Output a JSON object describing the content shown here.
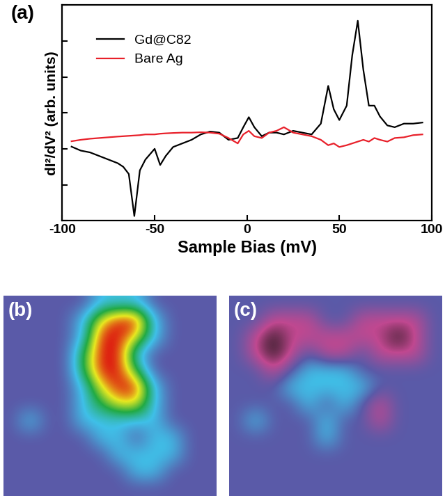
{
  "chart_data": [
    {
      "type": "line",
      "panel_label": "(a)",
      "x_label": "Sample Bias (mV)",
      "y_label": "dI²/dV² (arb. units)",
      "x": [
        -95,
        -90,
        -85,
        -80,
        -75,
        -70,
        -67,
        -64,
        -61,
        -58,
        -55,
        -50,
        -47,
        -44,
        -40,
        -35,
        -30,
        -25,
        -20,
        -15,
        -10,
        -5,
        -2,
        1,
        4,
        8,
        12,
        16,
        20,
        25,
        30,
        35,
        40,
        44,
        47,
        50,
        54,
        57,
        60,
        63,
        66,
        69,
        72,
        76,
        80,
        85,
        90,
        95
      ],
      "series": [
        {
          "name": "Gd@C82",
          "color": "#000000",
          "values": [
            -0.94,
            -1.05,
            -1.1,
            -1.2,
            -1.3,
            -1.4,
            -1.5,
            -1.7,
            -2.87,
            -1.6,
            -1.3,
            -1.0,
            -1.45,
            -1.2,
            -0.95,
            -0.85,
            -0.75,
            -0.6,
            -0.52,
            -0.55,
            -0.75,
            -0.7,
            -0.4,
            -0.12,
            -0.4,
            -0.65,
            -0.55,
            -0.55,
            -0.6,
            -0.5,
            -0.55,
            -0.6,
            -0.3,
            0.75,
            0.1,
            -0.2,
            0.2,
            1.6,
            2.56,
            1.2,
            0.2,
            0.2,
            -0.1,
            -0.35,
            -0.4,
            -0.3,
            -0.3,
            -0.27
          ]
        },
        {
          "name": "Bare Ag",
          "color": "#e8202a",
          "values": [
            -0.79,
            -0.75,
            -0.72,
            -0.7,
            -0.68,
            -0.66,
            -0.65,
            -0.64,
            -0.63,
            -0.62,
            -0.6,
            -0.6,
            -0.58,
            -0.57,
            -0.56,
            -0.55,
            -0.55,
            -0.54,
            -0.55,
            -0.58,
            -0.7,
            -0.85,
            -0.6,
            -0.5,
            -0.65,
            -0.7,
            -0.55,
            -0.5,
            -0.4,
            -0.55,
            -0.6,
            -0.65,
            -0.75,
            -0.9,
            -0.85,
            -0.95,
            -0.9,
            -0.85,
            -0.8,
            -0.75,
            -0.8,
            -0.7,
            -0.75,
            -0.8,
            -0.7,
            -0.68,
            -0.62,
            -0.6
          ]
        }
      ],
      "xlim": [
        -100,
        100
      ],
      "ylim": [
        -3,
        3
      ],
      "xticks": [
        -100,
        -50,
        0,
        50,
        100
      ],
      "yticks": [
        -3,
        -2,
        -1,
        0,
        1,
        2,
        3
      ],
      "tick_labels": "x",
      "legend": "upper left"
    },
    {
      "type": "heatmap",
      "panel_label": "(b)",
      "tick_labels": false,
      "colors": [
        "#5a5aa8",
        "#3fc0e8",
        "#22aa44",
        "#e8e820",
        "#dd1010"
      ],
      "cells": [
        [
          0,
          0,
          0,
          0,
          0,
          1,
          1,
          1,
          0,
          0,
          0,
          0
        ],
        [
          0,
          0,
          0,
          0,
          1,
          3,
          4,
          4,
          1,
          0,
          0,
          0
        ],
        [
          0,
          0,
          0,
          0,
          1,
          4,
          4,
          3,
          1,
          0,
          0,
          0
        ],
        [
          0,
          0,
          0,
          0,
          2,
          4,
          4,
          1,
          0,
          0,
          0,
          0
        ],
        [
          0,
          0,
          0,
          0,
          2,
          4,
          4,
          2,
          0,
          0,
          0,
          0
        ],
        [
          0,
          0,
          0,
          0,
          1,
          3,
          4,
          4,
          1,
          0,
          0,
          0
        ],
        [
          0,
          0,
          0,
          0,
          1,
          2,
          3,
          3,
          1,
          0,
          0,
          0
        ],
        [
          0,
          1,
          0,
          0,
          1,
          1,
          1,
          1,
          1,
          0,
          0,
          0
        ],
        [
          0,
          0,
          0,
          0,
          0,
          1,
          1,
          0,
          1,
          1,
          0,
          0
        ],
        [
          0,
          0,
          0,
          0,
          0,
          0,
          1,
          1,
          1,
          1,
          0,
          0
        ],
        [
          0,
          0,
          0,
          0,
          0,
          0,
          0,
          1,
          1,
          0,
          0,
          0
        ],
        [
          0,
          0,
          0,
          0,
          0,
          0,
          0,
          0,
          0,
          0,
          0,
          0
        ]
      ]
    },
    {
      "type": "heatmap",
      "panel_label": "(c)",
      "tick_labels": false,
      "colors": [
        "#2a1a20",
        "#c04890",
        "#5a5aa8",
        "#3fc0e8"
      ],
      "cells": [
        [
          0,
          0,
          0,
          0,
          0,
          0,
          0,
          0,
          0,
          0,
          0,
          0
        ],
        [
          0,
          0,
          -1,
          -1,
          -1,
          0,
          0,
          -1,
          -1,
          -1,
          -1,
          0
        ],
        [
          0,
          -1,
          -2,
          -1,
          -1,
          -1,
          -1,
          -1,
          -1,
          -2,
          -1,
          0
        ],
        [
          0,
          -1,
          -2,
          -1,
          0,
          -1,
          -1,
          0,
          -1,
          -1,
          -1,
          0
        ],
        [
          0,
          0,
          -1,
          0,
          1,
          1,
          1,
          0,
          0,
          0,
          0,
          0
        ],
        [
          0,
          0,
          0,
          1,
          1,
          1,
          1,
          1,
          0,
          0,
          0,
          0
        ],
        [
          0,
          0,
          0,
          0,
          1,
          0,
          1,
          0,
          -1,
          0,
          0,
          0
        ],
        [
          0,
          1,
          0,
          0,
          0,
          1,
          0,
          0,
          -1,
          0,
          0,
          0
        ],
        [
          0,
          0,
          0,
          0,
          0,
          1,
          0,
          0,
          0,
          0,
          0,
          0
        ],
        [
          0,
          0,
          0,
          0,
          0,
          0,
          0,
          0,
          0,
          0,
          0,
          0
        ],
        [
          0,
          0,
          0,
          0,
          0,
          0,
          0,
          0,
          0,
          0,
          0,
          0
        ],
        [
          0,
          0,
          0,
          0,
          0,
          0,
          0,
          0,
          0,
          0,
          0,
          0
        ]
      ]
    }
  ]
}
